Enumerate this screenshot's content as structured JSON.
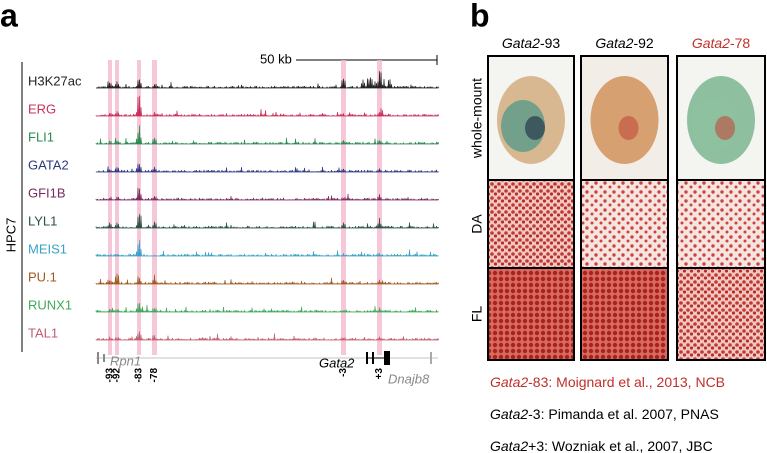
{
  "panel_a": {
    "label": "a",
    "scale_bar": "50 kb",
    "cell_line": "HPC7",
    "tracks": [
      {
        "name": "H3K27ac",
        "color": "#222222"
      },
      {
        "name": "ERG",
        "color": "#c8305a"
      },
      {
        "name": "FLI1",
        "color": "#2a8a50"
      },
      {
        "name": "GATA2",
        "color": "#2c3a80"
      },
      {
        "name": "GFI1B",
        "color": "#7a2a60"
      },
      {
        "name": "LYL1",
        "color": "#2a5048"
      },
      {
        "name": "MEIS1",
        "color": "#3aa0c8"
      },
      {
        "name": "PU.1",
        "color": "#a05a20"
      },
      {
        "name": "RUNX1",
        "color": "#40a858"
      },
      {
        "name": "TAL1",
        "color": "#c06070"
      }
    ],
    "genes": [
      "Rpn1",
      "Gata2",
      "Dnajb8"
    ],
    "elements": [
      "-93",
      "-92",
      "-83",
      "-78",
      "-3",
      "+3"
    ]
  },
  "panel_b": {
    "label": "b",
    "columns": [
      {
        "gene": "Gata2",
        "suffix": "-93",
        "color": "#000000"
      },
      {
        "gene": "Gata2",
        "suffix": "-92",
        "color": "#000000"
      },
      {
        "gene": "Gata2",
        "suffix": "-78",
        "color": "#c0302a"
      }
    ],
    "rows": [
      "whole-mount",
      "DA",
      "FL"
    ],
    "references": [
      {
        "gene": "Gata2",
        "text": "-83: Moignard et al., 2013, NCB",
        "color": "#c0302a"
      },
      {
        "gene": "Gata2",
        "text": "-3: Pimanda et al. 2007, PNAS",
        "color": "#000000"
      },
      {
        "gene": "Gata2",
        "text": "+3: Wozniak et al., 2007, JBC",
        "color": "#000000"
      }
    ]
  }
}
